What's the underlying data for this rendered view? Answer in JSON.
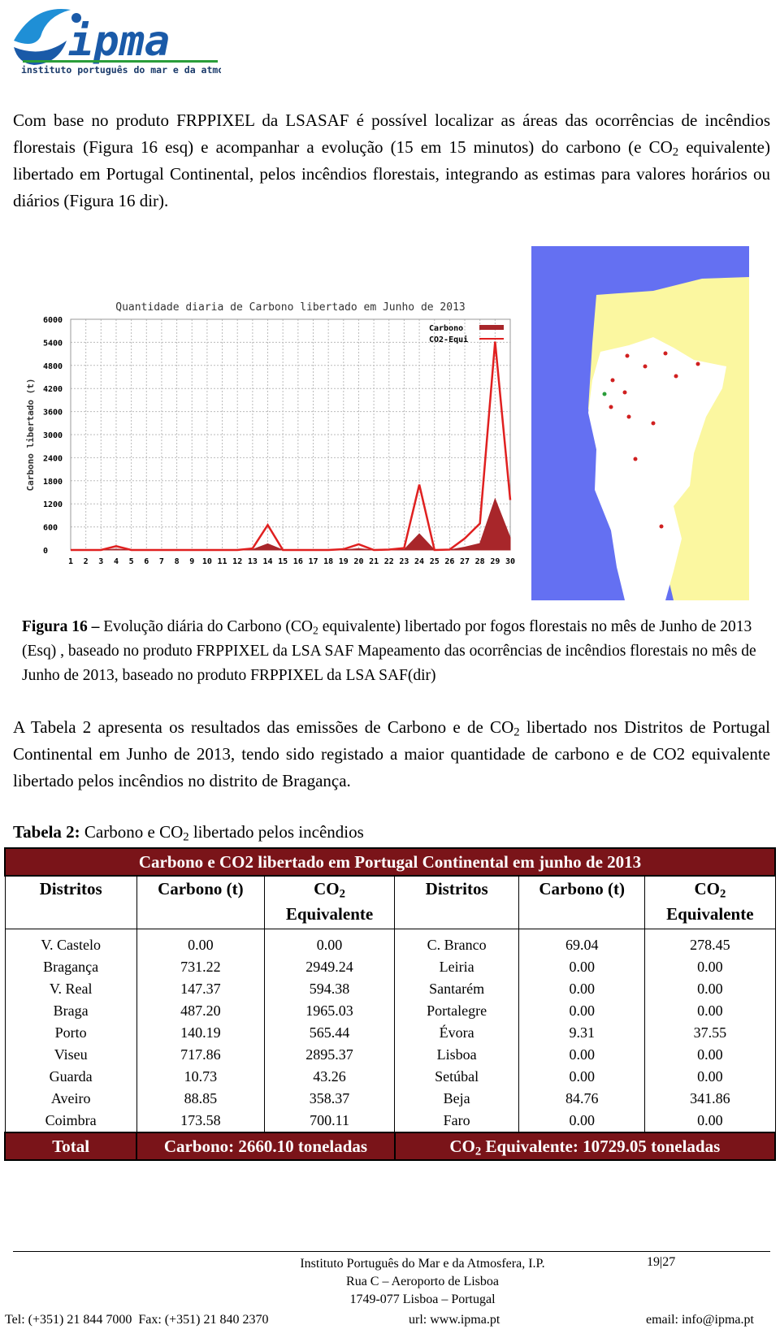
{
  "header": {
    "logo_text": "ipma",
    "logo_subtitle": "instituto português do mar e da atmosfera"
  },
  "paragraph_1": [
    "Com base no produto FRPPIXEL da LSASAF é possível localizar as áreas das ocorrências de incêndios florestais (Figura 16 esq) e acompanhar a evolução (15 em 15 minutos) do carbono (e CO",
    "2",
    " equivalente) libertado em Portugal Continental, pelos incêndios florestais, integrando as estimas para valores horários ou diários (Figura 16 dir)."
  ],
  "chart_data": {
    "type": "line",
    "title": "Quantidade diaria de Carbono libertado em Junho de 2013",
    "y_label": "Carbono libertado (t)",
    "x": [
      1,
      2,
      3,
      4,
      5,
      6,
      7,
      8,
      9,
      10,
      11,
      12,
      13,
      14,
      15,
      16,
      17,
      18,
      19,
      20,
      21,
      22,
      23,
      24,
      25,
      26,
      27,
      28,
      29,
      30
    ],
    "xlim": [
      1,
      30
    ],
    "ylim": [
      0,
      6000
    ],
    "yticks": [
      0,
      600,
      1200,
      1800,
      2400,
      3000,
      3600,
      4200,
      4800,
      5400,
      6000
    ],
    "grid": true,
    "legend": "upper right",
    "series": [
      {
        "name": "Carbono",
        "color": "#a8262a",
        "fill": true,
        "values": [
          0,
          0,
          0,
          25,
          0,
          0,
          0,
          0,
          0,
          0,
          0,
          0,
          10,
          160,
          0,
          0,
          0,
          0,
          5,
          35,
          0,
          3,
          12,
          420,
          0,
          3,
          75,
          170,
          1330,
          320
        ]
      },
      {
        "name": "CO2-Equi",
        "color": "#e02020",
        "fill": false,
        "values": [
          0,
          0,
          0,
          100,
          0,
          0,
          0,
          0,
          0,
          0,
          0,
          0,
          40,
          650,
          0,
          0,
          0,
          0,
          20,
          150,
          0,
          10,
          50,
          1700,
          0,
          10,
          300,
          690,
          5420,
          1300
        ]
      }
    ]
  },
  "figure_caption": {
    "label": "Figura 16 –",
    "text": [
      " Evolução diária do Carbono (CO",
      "2",
      " equivalente) libertado por fogos florestais no mês de Junho de 2013 (Esq) , baseado no produto FRPPIXEL da LSA SAF Mapeamento das ocorrências de incêndios florestais no mês de Junho de 2013, baseado no produto FRPPIXEL da LSA SAF(dir)"
    ]
  },
  "paragraph_2": [
    "A Tabela 2 apresenta os resultados das emissões de Carbono e de CO",
    "2",
    " libertado nos Distritos de Portugal Continental em Junho de 2013, tendo sido registado a maior quantidade de carbono e de CO2 equivalente libertado pelos incêndios no distrito de Bragança."
  ],
  "table_caption": {
    "label": "Tabela 2:",
    "text": [
      " Carbono e CO",
      "2",
      " libertado pelos incêndios"
    ]
  },
  "table": {
    "title": "Carbono e CO2 libertado em Portugal Continental em junho de 2013",
    "headers": [
      "Distritos",
      "Carbono (t)",
      [
        "CO",
        "2",
        "Equivalente"
      ],
      "Distritos",
      "Carbono (t)",
      [
        "CO",
        "2",
        "Equivalente"
      ]
    ],
    "rows": [
      [
        "V. Castelo",
        "0.00",
        "0.00",
        "C. Branco",
        "69.04",
        "278.45"
      ],
      [
        "Bragança",
        "731.22",
        "2949.24",
        "Leiria",
        "0.00",
        "0.00"
      ],
      [
        "V. Real",
        "147.37",
        "594.38",
        "Santarém",
        "0.00",
        "0.00"
      ],
      [
        "Braga",
        "487.20",
        "1965.03",
        "Portalegre",
        "0.00",
        "0.00"
      ],
      [
        "Porto",
        "140.19",
        "565.44",
        "Évora",
        "9.31",
        "37.55"
      ],
      [
        "Viseu",
        "717.86",
        "2895.37",
        "Lisboa",
        "0.00",
        "0.00"
      ],
      [
        "Guarda",
        "10.73",
        "43.26",
        "Setúbal",
        "0.00",
        "0.00"
      ],
      [
        "Aveiro",
        "88.85",
        "358.37",
        "Beja",
        "84.76",
        "341.86"
      ],
      [
        "Coimbra",
        "173.58",
        "700.11",
        "Faro",
        "0.00",
        "0.00"
      ]
    ],
    "total": {
      "label": "Total",
      "carbon": "Carbono: 2660.10 toneladas",
      "co2": [
        "CO",
        "2",
        " Equivalente: 10729.05 toneladas"
      ]
    }
  },
  "footer": {
    "institution": "Instituto Português do Mar e da Atmosfera, I.P.",
    "page": "19|27",
    "address_1": "Rua C – Aeroporto de Lisboa",
    "address_2": "1749-077 Lisboa – Portugal",
    "phone": "Tel: (+351) 21 844 7000  Fax: (+351) 21 840 2370",
    "url": "url: www.ipma.pt",
    "email": "email: info@ipma.pt"
  }
}
